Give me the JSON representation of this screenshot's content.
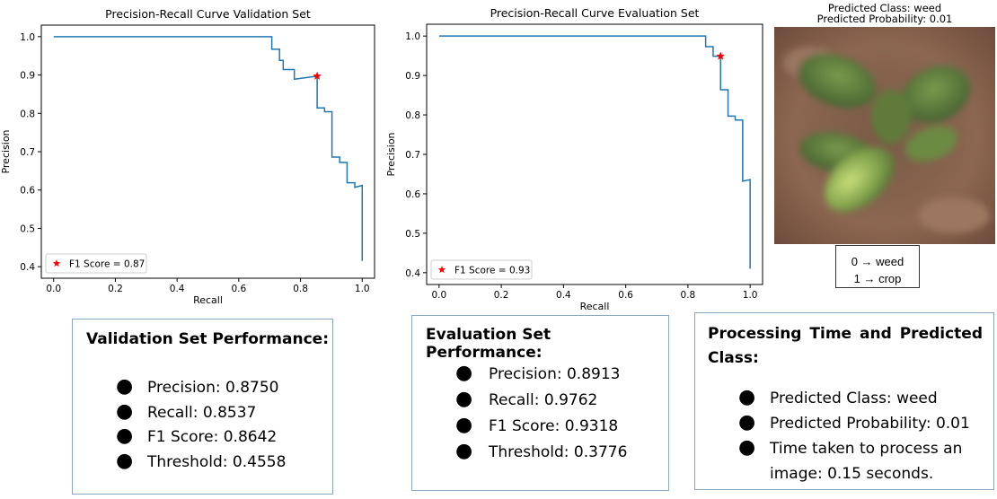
{
  "chart_data": [
    {
      "type": "line",
      "title": "Precision-Recall Curve Validation Set",
      "xlabel": "Recall",
      "ylabel": "Precision",
      "xlim": [
        -0.04,
        1.04
      ],
      "ylim": [
        0.37,
        1.03
      ],
      "x_ticks": [
        "0.0",
        "0.2",
        "0.4",
        "0.6",
        "0.8",
        "1.0"
      ],
      "y_ticks": [
        "0.4",
        "0.5",
        "0.6",
        "0.7",
        "0.8",
        "0.9",
        "1.0"
      ],
      "series": [
        {
          "color": "#1f77b4",
          "points": [
            [
              0,
              1.0
            ],
            [
              0.707,
              1.0
            ],
            [
              0.707,
              0.967
            ],
            [
              0.732,
              0.967
            ],
            [
              0.732,
              0.938
            ],
            [
              0.744,
              0.938
            ],
            [
              0.744,
              0.914
            ],
            [
              0.78,
              0.914
            ],
            [
              0.78,
              0.889
            ],
            [
              0.854,
              0.897
            ],
            [
              0.854,
              0.814
            ],
            [
              0.878,
              0.814
            ],
            [
              0.878,
              0.804
            ],
            [
              0.902,
              0.804
            ],
            [
              0.902,
              0.686
            ],
            [
              0.927,
              0.686
            ],
            [
              0.927,
              0.672
            ],
            [
              0.951,
              0.672
            ],
            [
              0.951,
              0.619
            ],
            [
              0.976,
              0.619
            ],
            [
              0.976,
              0.607
            ],
            [
              1.0,
              0.612
            ],
            [
              1.0,
              0.415
            ]
          ]
        }
      ],
      "marker": {
        "x": 0.854,
        "y": 0.897,
        "color": "#ff0000",
        "shape": "star"
      },
      "legend": {
        "label": "F1 Score = 0.87",
        "position": "lower-left"
      }
    },
    {
      "type": "line",
      "title": "Precision-Recall Curve Evaluation Set",
      "xlabel": "Recall",
      "ylabel": "Precision",
      "xlim": [
        -0.04,
        1.04
      ],
      "ylim": [
        0.37,
        1.03
      ],
      "x_ticks": [
        "0.0",
        "0.2",
        "0.4",
        "0.6",
        "0.8",
        "1.0"
      ],
      "y_ticks": [
        "0.4",
        "0.5",
        "0.6",
        "0.7",
        "0.8",
        "0.9",
        "1.0"
      ],
      "series": [
        {
          "color": "#1f77b4",
          "points": [
            [
              0,
              1.0
            ],
            [
              0.857,
              1.0
            ],
            [
              0.857,
              0.973
            ],
            [
              0.881,
              0.973
            ],
            [
              0.881,
              0.949
            ],
            [
              0.905,
              0.949
            ],
            [
              0.905,
              0.864
            ],
            [
              0.929,
              0.864
            ],
            [
              0.929,
              0.797
            ],
            [
              0.952,
              0.797
            ],
            [
              0.952,
              0.787
            ],
            [
              0.976,
              0.787
            ],
            [
              0.976,
              0.632
            ],
            [
              1.0,
              0.636
            ],
            [
              1.0,
              0.41
            ]
          ]
        }
      ],
      "marker": {
        "x": 0.905,
        "y": 0.949,
        "color": "#ff0000",
        "shape": "star"
      },
      "legend": {
        "label": "F1 Score = 0.93",
        "position": "lower-left"
      }
    }
  ],
  "image_panel": {
    "title_line1": "Predicted Class: weed",
    "title_line2": "Predicted Probability: 0.01",
    "class_map_line1": "0 → weed",
    "class_map_line2": "1 → crop"
  },
  "validation_box": {
    "heading": "Validation Set Performance:",
    "items": [
      "Precision: 0.8750",
      "Recall: 0.8537",
      "F1 Score: 0.8642",
      "Threshold: 0.4558"
    ]
  },
  "evaluation_box": {
    "heading": "Evaluation Set Performance:",
    "items": [
      "Precision: 0.8913",
      "Recall: 0.9762",
      "F1 Score: 0.9318",
      "Threshold: 0.3776"
    ]
  },
  "processing_box": {
    "heading_line1": "Processing Time and Predicted",
    "heading_line2": "Class:",
    "items": [
      "Predicted Class: weed",
      "Predicted Probability: 0.01",
      "Time taken to process an",
      "image: 0.15 seconds."
    ]
  },
  "bullet_glyph": "●"
}
